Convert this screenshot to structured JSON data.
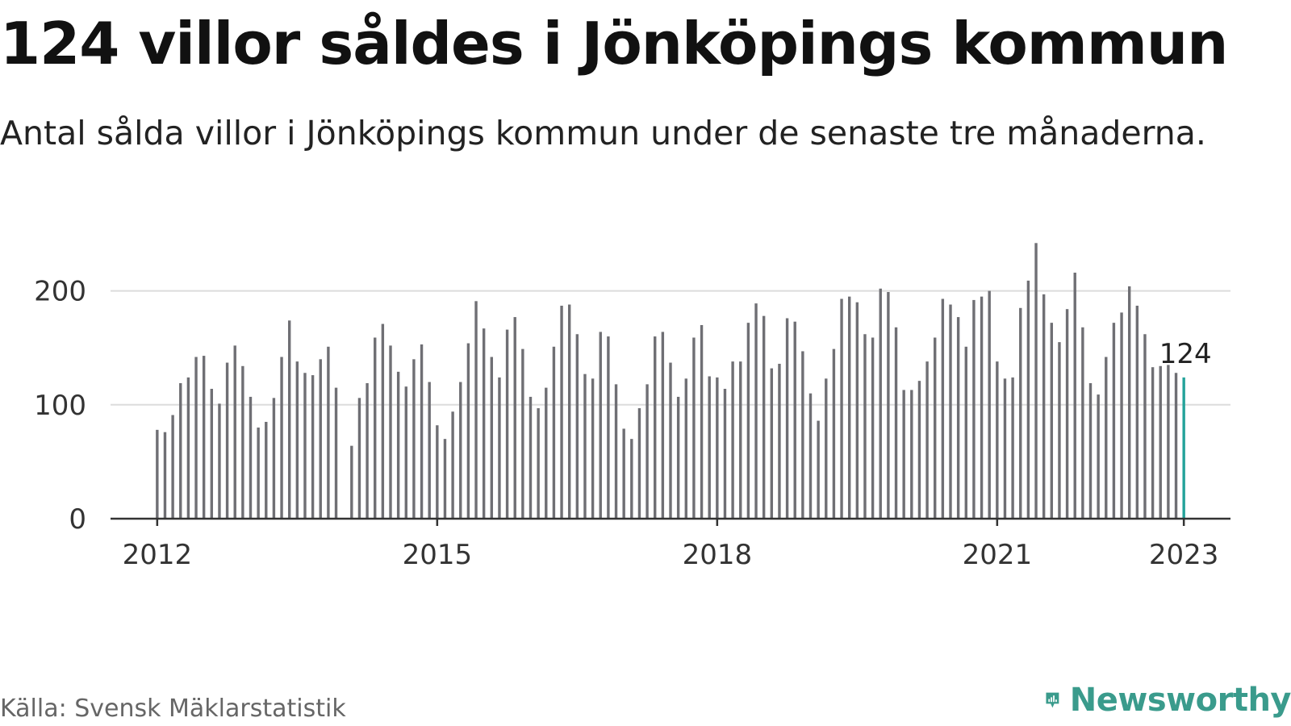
{
  "title": "124 villor såldes i Jönköpings kommun",
  "subtitle": "Antal sålda villor i Jönköpings kommun under de senaste tre månaderna.",
  "source": "Källa: Svensk Mäklarstatistik",
  "brand": {
    "name": "Newsworthy",
    "logo_icon": "newsworthy-bar-chart-bubble-icon"
  },
  "colors": {
    "bar": "#6f6f74",
    "highlight": "#24a39a",
    "grid": "#dcdcdc",
    "axis": "#333333",
    "brand": "#3a9b8c"
  },
  "chart_data": {
    "type": "bar",
    "title": "124 villor såldes i Jönköpings kommun",
    "subtitle": "Antal sålda villor i Jönköpings kommun under de senaste tre månaderna.",
    "xlabel": "",
    "ylabel": "",
    "ylim": [
      0,
      250
    ],
    "y_ticks": [
      0,
      100,
      200
    ],
    "x_ticks": [
      "2012",
      "2015",
      "2018",
      "2021",
      "2023"
    ],
    "x_tick_positions": [
      "2012-01",
      "2015-01",
      "2018-01",
      "2021-01",
      "2023-01"
    ],
    "xlim": [
      "2011-07",
      "2023-07"
    ],
    "grid": true,
    "highlight": {
      "x": "2023-01",
      "value": 124,
      "label": "124"
    },
    "x": [
      "2012-01",
      "2012-02",
      "2012-03",
      "2012-04",
      "2012-05",
      "2012-06",
      "2012-07",
      "2012-08",
      "2012-09",
      "2012-10",
      "2012-11",
      "2012-12",
      "2013-01",
      "2013-02",
      "2013-03",
      "2013-04",
      "2013-05",
      "2013-06",
      "2013-07",
      "2013-08",
      "2013-09",
      "2013-10",
      "2013-11",
      "2013-12",
      "2014-01",
      "2014-02",
      "2014-03",
      "2014-04",
      "2014-05",
      "2014-06",
      "2014-07",
      "2014-08",
      "2014-09",
      "2014-10",
      "2014-11",
      "2014-12",
      "2015-01",
      "2015-02",
      "2015-03",
      "2015-04",
      "2015-05",
      "2015-06",
      "2015-07",
      "2015-08",
      "2015-09",
      "2015-10",
      "2015-11",
      "2015-12",
      "2016-01",
      "2016-02",
      "2016-03",
      "2016-04",
      "2016-05",
      "2016-06",
      "2016-07",
      "2016-08",
      "2016-09",
      "2016-10",
      "2016-11",
      "2016-12",
      "2017-01",
      "2017-02",
      "2017-03",
      "2017-04",
      "2017-05",
      "2017-06",
      "2017-07",
      "2017-08",
      "2017-09",
      "2017-10",
      "2017-11",
      "2017-12",
      "2018-01",
      "2018-02",
      "2018-03",
      "2018-04",
      "2018-05",
      "2018-06",
      "2018-07",
      "2018-08",
      "2018-09",
      "2018-10",
      "2018-11",
      "2018-12",
      "2019-01",
      "2019-02",
      "2019-03",
      "2019-04",
      "2019-05",
      "2019-06",
      "2019-07",
      "2019-08",
      "2019-09",
      "2019-10",
      "2019-11",
      "2019-12",
      "2020-01",
      "2020-02",
      "2020-03",
      "2020-04",
      "2020-05",
      "2020-06",
      "2020-07",
      "2020-08",
      "2020-09",
      "2020-10",
      "2020-11",
      "2020-12",
      "2021-01",
      "2021-02",
      "2021-03",
      "2021-04",
      "2021-05",
      "2021-06",
      "2021-07",
      "2021-08",
      "2021-09",
      "2021-10",
      "2021-11",
      "2021-12",
      "2022-01",
      "2022-02",
      "2022-03",
      "2022-04",
      "2022-05",
      "2022-06",
      "2022-07",
      "2022-08",
      "2022-09",
      "2022-10",
      "2022-11",
      "2022-12",
      "2023-01"
    ],
    "values": [
      78,
      76,
      91,
      119,
      124,
      142,
      143,
      114,
      101,
      137,
      152,
      134,
      107,
      80,
      85,
      106,
      142,
      174,
      138,
      128,
      126,
      140,
      151,
      115,
      null,
      64,
      106,
      119,
      159,
      171,
      152,
      129,
      116,
      140,
      153,
      120,
      82,
      70,
      94,
      120,
      154,
      191,
      167,
      142,
      124,
      166,
      177,
      149,
      107,
      97,
      115,
      151,
      187,
      188,
      162,
      127,
      123,
      164,
      160,
      118,
      79,
      70,
      97,
      118,
      160,
      164,
      137,
      107,
      123,
      159,
      170,
      125,
      124,
      114,
      138,
      138,
      172,
      189,
      178,
      132,
      136,
      176,
      173,
      147,
      110,
      86,
      123,
      149,
      193,
      195,
      190,
      162,
      159,
      202,
      199,
      168,
      113,
      113,
      121,
      138,
      159,
      193,
      188,
      177,
      151,
      192,
      195,
      200,
      138,
      123,
      124,
      185,
      209,
      242,
      197,
      172,
      155,
      184,
      216,
      168,
      119,
      109,
      142,
      172,
      181,
      204,
      187,
      162,
      133,
      134,
      135,
      128,
      124
    ]
  }
}
